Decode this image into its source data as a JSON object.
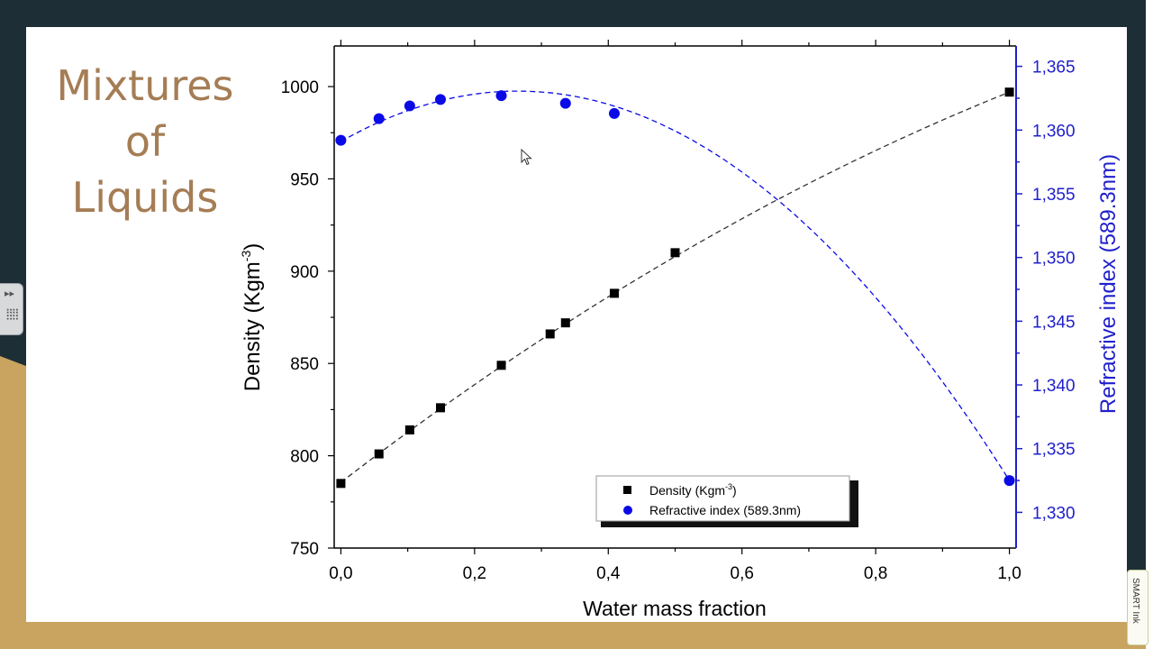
{
  "slide": {
    "title_lines": [
      "Mixtures",
      "of",
      "Liquids"
    ]
  },
  "smart_tab": {
    "label": "SMART Ink"
  },
  "left_tab": {
    "arrows": "▸▸",
    "grid": "⣿⣿"
  },
  "colors": {
    "title": "#a57d55",
    "density": "#000000",
    "refractive": "#0a0ae6",
    "right_axis": "#2020cc"
  },
  "chart_data": {
    "type": "scatter",
    "xlabel": "Water mass fraction",
    "ylabel_left": "Density (Kgm",
    "ylabel_left_sup": "-3",
    "ylabel_left_end": ")",
    "ylabel_right": "Refractive index (589.3nm)",
    "x_range": [
      -0.01,
      1.01
    ],
    "y_left_range": [
      750,
      1022
    ],
    "y_right_range": [
      1.3272,
      1.3666
    ],
    "x_ticks": [
      0.0,
      0.2,
      0.4,
      0.6,
      0.8,
      1.0
    ],
    "x_tick_labels": [
      "0,0",
      "0,2",
      "0,4",
      "0,6",
      "0,8",
      "1,0"
    ],
    "y_left_ticks": [
      750,
      800,
      850,
      900,
      950,
      1000
    ],
    "y_left_tick_labels": [
      "750",
      "800",
      "850",
      "900",
      "950",
      "1000"
    ],
    "y_right_ticks": [
      1.33,
      1.335,
      1.34,
      1.345,
      1.35,
      1.355,
      1.36,
      1.365
    ],
    "y_right_tick_labels": [
      "1,330",
      "1,335",
      "1,340",
      "1,345",
      "1,350",
      "1,355",
      "1,360",
      "1,365"
    ],
    "legend": {
      "position": "bottom-right",
      "entries": [
        {
          "label": "Density (Kgm",
          "sup": "-3",
          "end": ")",
          "marker": "square"
        },
        {
          "label": "Refractive index (589.3nm)",
          "marker": "circle"
        }
      ]
    },
    "series": [
      {
        "name": "Density (Kgm-3)",
        "axis": "left",
        "marker": "square",
        "x": [
          0.0,
          0.057,
          0.103,
          0.149,
          0.24,
          0.313,
          0.336,
          0.409,
          0.5,
          1.0
        ],
        "y": [
          785,
          801,
          814,
          826,
          849,
          866,
          872,
          888,
          910,
          997
        ]
      },
      {
        "name": "Refractive index (589.3nm)",
        "axis": "right",
        "marker": "circle",
        "x": [
          0.0,
          0.057,
          0.103,
          0.149,
          0.24,
          0.336,
          0.409,
          1.0
        ],
        "y": [
          1.3592,
          1.3609,
          1.3619,
          1.3624,
          1.3627,
          1.3621,
          1.3613,
          1.3325
        ]
      }
    ],
    "fits": [
      {
        "series": "Density (Kgm-3)",
        "kind": "quadratic",
        "coeffs": [
          785.6,
          277.9,
          -66.5
        ]
      },
      {
        "series": "Refractive index (589.3nm)",
        "kind": "quadratic",
        "coeffs": [
          1.3591,
          0.02991,
          -0.05651
        ]
      }
    ]
  }
}
